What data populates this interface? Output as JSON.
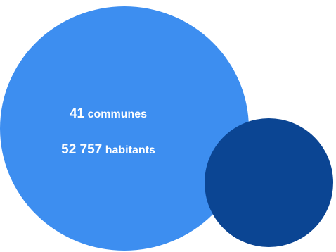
{
  "colors": {
    "large_bubble": "#3d8ef0",
    "small_bubble": "#0b4593",
    "text": "#ffffff"
  },
  "stats": {
    "communes_value": "41",
    "communes_label": "communes",
    "habitants_value": "52 757",
    "habitants_label": "habitants"
  }
}
